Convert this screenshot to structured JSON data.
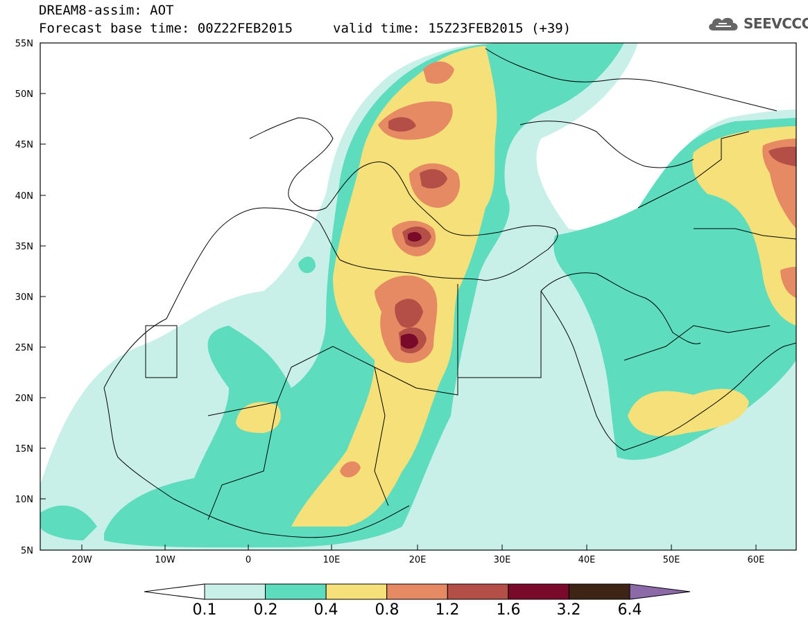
{
  "header": {
    "line1": "DREAM8-assim: AOT",
    "line2": "Forecast base time: 00Z22FEB2015",
    "valid": "valid time: 15Z23FEB2015 (+39)"
  },
  "logo": {
    "text": "SEEVCCC",
    "icon": "cloud-icon"
  },
  "axes": {
    "lat_labels": [
      "55N",
      "50N",
      "45N",
      "40N",
      "35N",
      "30N",
      "25N",
      "20N",
      "15N",
      "10N",
      "5N"
    ],
    "lon_labels": [
      "20W",
      "10W",
      "0",
      "10E",
      "20E",
      "30E",
      "40E",
      "50E",
      "60E"
    ]
  },
  "legend": {
    "labels": [
      "0.1",
      "0.2",
      "0.4",
      "0.8",
      "1.2",
      "1.6",
      "3.2",
      "6.4"
    ],
    "colors": [
      "#ffffff",
      "#c8f0e8",
      "#5edcbe",
      "#f5e07a",
      "#e68a64",
      "#b44f48",
      "#7a0a2a",
      "#3d2414",
      "#8c6aa8"
    ]
  }
}
